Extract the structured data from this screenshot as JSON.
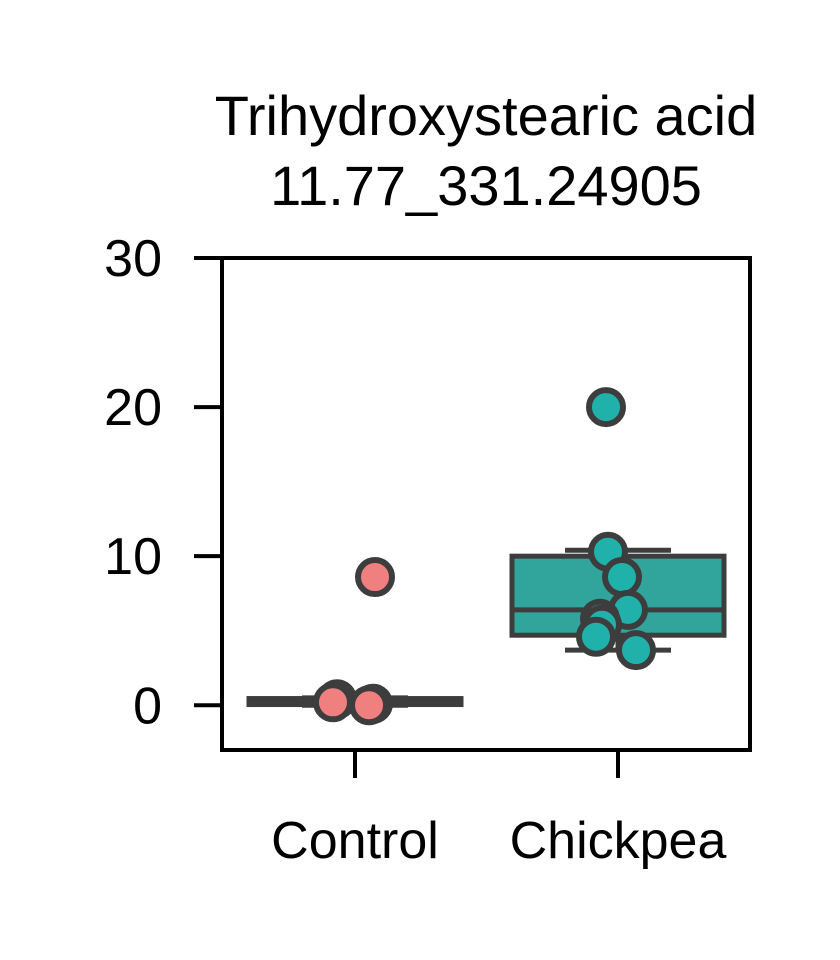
{
  "chart_data": {
    "type": "box",
    "title_lines": [
      "Trihydroxystearic acid",
      "11.77_331.24905"
    ],
    "xlabel": "",
    "ylabel": "",
    "ylim": [
      -3,
      30
    ],
    "yticks": [
      0,
      10,
      20,
      30
    ],
    "yticks_labels": [
      "0",
      "10",
      "20",
      "30"
    ],
    "categories": [
      "Control",
      "Chickpea"
    ],
    "grid": false,
    "groups": [
      {
        "category": "Control",
        "box": {
          "q1": 0.1,
          "median": 0.2,
          "q3": 0.4,
          "whisker_low": 0.0,
          "whisker_high": 0.5
        },
        "points": [
          0.4,
          0.1,
          0.0,
          0.2,
          8.6
        ],
        "box_color": "#3a3a3a",
        "point_color": "#f08080"
      },
      {
        "category": "Chickpea",
        "box": {
          "q1": 4.7,
          "median": 6.4,
          "q3": 10.0,
          "whisker_low": 3.7,
          "whisker_high": 10.4
        },
        "points": [
          20.0,
          10.3,
          8.6,
          6.4,
          5.8,
          5.4,
          4.6,
          3.7
        ],
        "box_color": "#31a59c",
        "point_color": "#20b2aa"
      }
    ],
    "edge_color": "#3d3d3d"
  }
}
